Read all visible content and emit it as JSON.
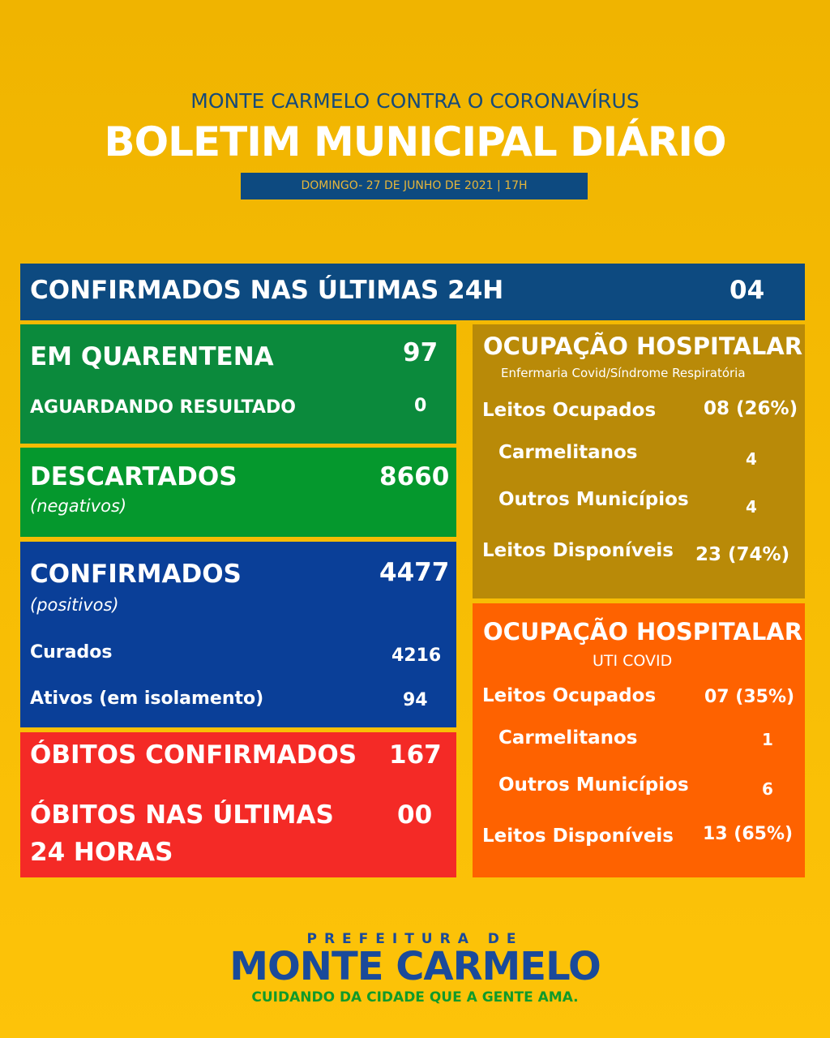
{
  "header": {
    "subtitle": "MONTE CARMELO CONTRA O CORONAVÍRUS",
    "title": "BOLETIM MUNICIPAL DIÁRIO",
    "date": "DOMINGO- 27 DE JUNHO DE 2021 | 17H"
  },
  "confirmed_24h": {
    "label": "CONFIRMADOS NAS ÚLTIMAS 24H",
    "value": "04"
  },
  "quarantine": {
    "label": "EM QUARENTENA",
    "value": "97",
    "awaiting_label": "AGUARDANDO RESULTADO",
    "awaiting_value": "0"
  },
  "discarded": {
    "label": "DESCARTADOS",
    "note": "(negativos)",
    "value": "8660"
  },
  "confirmed": {
    "label": "CONFIRMADOS",
    "note": "(positivos)",
    "value": "4477",
    "cured_label": "Curados",
    "cured_value": "4216",
    "active_label": "Ativos (em isolamento)",
    "active_value": "94"
  },
  "deaths": {
    "label": "ÓBITOS CONFIRMADOS",
    "value": "167",
    "last24_label_1": "ÓBITOS NAS ÚLTIMAS",
    "last24_label_2": "24 HORAS",
    "last24_value": "00"
  },
  "ward": {
    "title": "OCUPAÇÃO HOSPITALAR",
    "subtitle": "Enfermaria Covid/Síndrome Respiratória",
    "occupied_label": "Leitos Ocupados",
    "occupied_value": "08 (26%)",
    "local_label": "Carmelitanos",
    "local_value": "4",
    "other_label": "Outros Municípios",
    "other_value": "4",
    "available_label": "Leitos Disponíveis",
    "available_value": "23 (74%)"
  },
  "icu": {
    "title": "OCUPAÇÃO HOSPITALAR",
    "subtitle": "UTI COVID",
    "occupied_label": "Leitos Ocupados",
    "occupied_value": "07 (35%)",
    "local_label": "Carmelitanos",
    "local_value": "1",
    "other_label": "Outros Municípios",
    "other_value": "6",
    "available_label": "Leitos Disponíveis",
    "available_value": "13 (65%)"
  },
  "footer": {
    "prefix": "PREFEITURA DE",
    "city": "MONTE CARMELO",
    "tagline": "CUIDANDO DA CIDADE QUE A GENTE AMA."
  }
}
